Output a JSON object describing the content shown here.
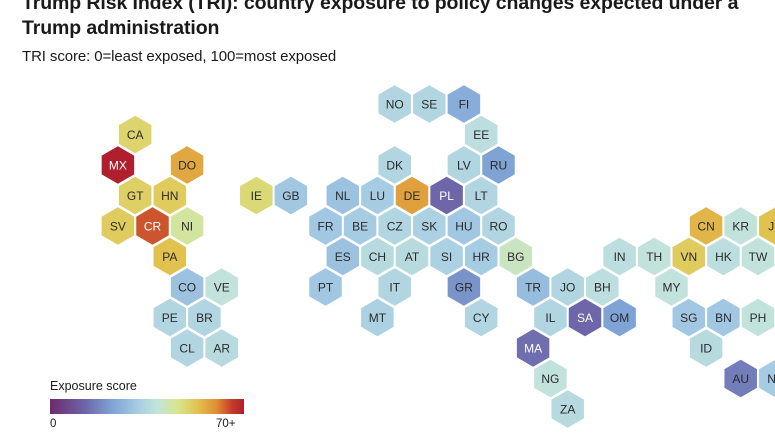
{
  "header": {
    "title": "Trump Risk Index (TRI): country exposure to policy changes expected under a Trump administration",
    "subtitle": "TRI score: 0=least exposed, 100=most exposed"
  },
  "legend": {
    "title": "Exposure score",
    "min_label": "0",
    "max_label": "70+"
  },
  "chart_data": {
    "type": "heatmap",
    "title": "Trump Risk Index (TRI): country exposure to policy changes expected under a Trump administration",
    "subtitle": "TRI score: 0=least exposed, 100=most exposed",
    "scale": {
      "min": 0,
      "max": 70
    },
    "countries": [
      {
        "code": "NO",
        "col": 19,
        "row": 0,
        "score": 30
      },
      {
        "code": "SE",
        "col": 21,
        "row": 0,
        "score": 30
      },
      {
        "code": "FI",
        "col": 23,
        "row": 0,
        "score": 22
      },
      {
        "code": "EE",
        "col": 24,
        "row": 1,
        "score": 32
      },
      {
        "code": "CA",
        "col": 4,
        "row": 1,
        "score": 46
      },
      {
        "code": "DK",
        "col": 19,
        "row": 2,
        "score": 30
      },
      {
        "code": "LV",
        "col": 23,
        "row": 2,
        "score": 30
      },
      {
        "code": "RU",
        "col": 25,
        "row": 2,
        "score": 20
      },
      {
        "code": "MX",
        "col": 3,
        "row": 2,
        "score": 70
      },
      {
        "code": "DO",
        "col": 7,
        "row": 2,
        "score": 54
      },
      {
        "code": "GT",
        "col": 4,
        "row": 3,
        "score": 47
      },
      {
        "code": "HN",
        "col": 6,
        "row": 3,
        "score": 48
      },
      {
        "code": "IE",
        "col": 11,
        "row": 3,
        "score": 45
      },
      {
        "code": "GB",
        "col": 13,
        "row": 3,
        "score": 27
      },
      {
        "code": "NL",
        "col": 16,
        "row": 3,
        "score": 26
      },
      {
        "code": "LU",
        "col": 18,
        "row": 3,
        "score": 28
      },
      {
        "code": "DE",
        "col": 20,
        "row": 3,
        "score": 55
      },
      {
        "code": "PL",
        "col": 22,
        "row": 3,
        "score": 12
      },
      {
        "code": "LT",
        "col": 24,
        "row": 3,
        "score": 30
      },
      {
        "code": "SV",
        "col": 3,
        "row": 4,
        "score": 48
      },
      {
        "code": "CR",
        "col": 5,
        "row": 4,
        "score": 62
      },
      {
        "code": "NI",
        "col": 7,
        "row": 4,
        "score": 40
      },
      {
        "code": "FR",
        "col": 15,
        "row": 4,
        "score": 27
      },
      {
        "code": "BE",
        "col": 17,
        "row": 4,
        "score": 28
      },
      {
        "code": "CZ",
        "col": 19,
        "row": 4,
        "score": 30
      },
      {
        "code": "SK",
        "col": 21,
        "row": 4,
        "score": 29
      },
      {
        "code": "HU",
        "col": 23,
        "row": 4,
        "score": 27
      },
      {
        "code": "RO",
        "col": 25,
        "row": 4,
        "score": 30
      },
      {
        "code": "CN",
        "col": 37,
        "row": 4,
        "score": 52
      },
      {
        "code": "KR",
        "col": 39,
        "row": 4,
        "score": 33
      },
      {
        "code": "JP",
        "col": 41,
        "row": 4,
        "score": 50
      },
      {
        "code": "PA",
        "col": 6,
        "row": 5,
        "score": 50
      },
      {
        "code": "ES",
        "col": 16,
        "row": 5,
        "score": 26
      },
      {
        "code": "CH",
        "col": 18,
        "row": 5,
        "score": 31
      },
      {
        "code": "AT",
        "col": 20,
        "row": 5,
        "score": 31
      },
      {
        "code": "SI",
        "col": 22,
        "row": 5,
        "score": 29
      },
      {
        "code": "HR",
        "col": 24,
        "row": 5,
        "score": 28
      },
      {
        "code": "BG",
        "col": 26,
        "row": 5,
        "score": 36
      },
      {
        "code": "IN",
        "col": 32,
        "row": 5,
        "score": 32
      },
      {
        "code": "TH",
        "col": 34,
        "row": 5,
        "score": 33
      },
      {
        "code": "VN",
        "col": 36,
        "row": 5,
        "score": 48
      },
      {
        "code": "HK",
        "col": 38,
        "row": 5,
        "score": 32
      },
      {
        "code": "TW",
        "col": 40,
        "row": 5,
        "score": 33
      },
      {
        "code": "CO",
        "col": 7,
        "row": 6,
        "score": 26
      },
      {
        "code": "VE",
        "col": 9,
        "row": 6,
        "score": 33
      },
      {
        "code": "PT",
        "col": 15,
        "row": 6,
        "score": 27
      },
      {
        "code": "IT",
        "col": 19,
        "row": 6,
        "score": 30
      },
      {
        "code": "GR",
        "col": 23,
        "row": 6,
        "score": 18
      },
      {
        "code": "TR",
        "col": 27,
        "row": 6,
        "score": 25
      },
      {
        "code": "JO",
        "col": 29,
        "row": 6,
        "score": 30
      },
      {
        "code": "BH",
        "col": 31,
        "row": 6,
        "score": 32
      },
      {
        "code": "MY",
        "col": 35,
        "row": 6,
        "score": 33
      },
      {
        "code": "PE",
        "col": 6,
        "row": 7,
        "score": 30
      },
      {
        "code": "BR",
        "col": 8,
        "row": 7,
        "score": 30
      },
      {
        "code": "MT",
        "col": 18,
        "row": 7,
        "score": 29
      },
      {
        "code": "CY",
        "col": 24,
        "row": 7,
        "score": 30
      },
      {
        "code": "IL",
        "col": 28,
        "row": 7,
        "score": 30
      },
      {
        "code": "SA",
        "col": 30,
        "row": 7,
        "score": 12
      },
      {
        "code": "OM",
        "col": 32,
        "row": 7,
        "score": 20
      },
      {
        "code": "SG",
        "col": 36,
        "row": 7,
        "score": 27
      },
      {
        "code": "BN",
        "col": 38,
        "row": 7,
        "score": 27
      },
      {
        "code": "PH",
        "col": 40,
        "row": 7,
        "score": 33
      },
      {
        "code": "CL",
        "col": 7,
        "row": 8,
        "score": 30
      },
      {
        "code": "AR",
        "col": 9,
        "row": 8,
        "score": 31
      },
      {
        "code": "MA",
        "col": 27,
        "row": 8,
        "score": 13
      },
      {
        "code": "ID",
        "col": 37,
        "row": 8,
        "score": 31
      },
      {
        "code": "NG",
        "col": 28,
        "row": 9,
        "score": 33
      },
      {
        "code": "AU",
        "col": 39,
        "row": 9,
        "score": 15
      },
      {
        "code": "NZ",
        "col": 41,
        "row": 9,
        "score": 28
      },
      {
        "code": "ZA",
        "col": 29,
        "row": 10,
        "score": 31
      }
    ]
  }
}
